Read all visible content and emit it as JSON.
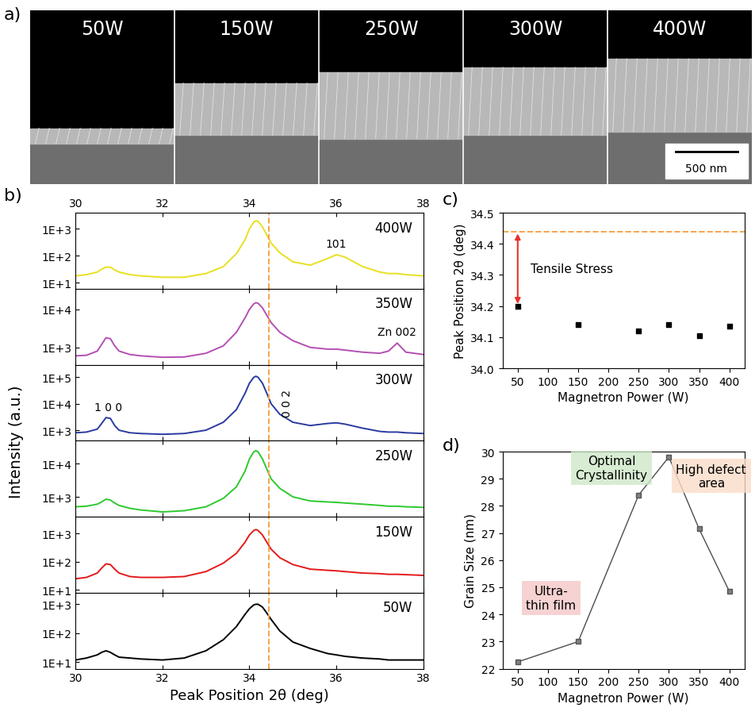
{
  "chart_data": [
    {
      "type": "image",
      "panel_label": "a)",
      "labels": [
        "50W",
        "150W",
        "250W",
        "300W",
        "400W"
      ],
      "scale_bar": "500 nm"
    },
    {
      "type": "line",
      "panel_label": "b)",
      "log": "y",
      "xlabel": "Peak Position 2θ (deg)",
      "ylabel": "Intensity (a.u.)",
      "xlim": [
        30,
        38
      ],
      "xticks": [
        30,
        32,
        34,
        36,
        38
      ],
      "reference_line": {
        "value": 34.44,
        "color": "#f5a54a",
        "line_style": "dashed"
      },
      "x": [
        30.0,
        30.25,
        30.5,
        30.6,
        30.7,
        30.8,
        30.9,
        31.0,
        31.25,
        31.5,
        32.0,
        32.5,
        33.0,
        33.4,
        33.7,
        33.9,
        34.0,
        34.1,
        34.15,
        34.2,
        34.3,
        34.4,
        34.5,
        34.7,
        35.0,
        35.4,
        35.8,
        36.0,
        36.2,
        36.6,
        37.0,
        37.2,
        37.4,
        37.6,
        38.0
      ],
      "series": [
        {
          "name": "400W",
          "color": "#e8e020",
          "ylim": [
            6,
            4000
          ],
          "yticks": [
            {
              "value": 10,
              "label": "1E+1"
            },
            {
              "value": 100,
              "label": "1E+2"
            },
            {
              "value": 1000,
              "label": "1E+3"
            }
          ],
          "annotations": [
            {
              "text": "101",
              "x": 36.0
            }
          ],
          "values": [
            18,
            20,
            25,
            32,
            38,
            38,
            30,
            25,
            20,
            18,
            16,
            16,
            22,
            40,
            120,
            400,
            1000,
            1800,
            2000,
            1900,
            1200,
            600,
            300,
            130,
            60,
            45,
            80,
            110,
            90,
            40,
            25,
            22,
            22,
            20,
            18
          ]
        },
        {
          "name": "350W",
          "color": "#b34fb3",
          "ylim": [
            350,
            35000
          ],
          "yticks": [
            {
              "value": 1000,
              "label": "1E+3"
            },
            {
              "value": 10000,
              "label": "1E+4"
            }
          ],
          "annotations": [
            {
              "text": "Zn 002",
              "x": 37.4
            }
          ],
          "values": [
            600,
            620,
            800,
            1200,
            1800,
            1700,
            1100,
            800,
            650,
            600,
            550,
            560,
            700,
            1100,
            2500,
            6000,
            10000,
            14000,
            15000,
            14500,
            11000,
            7000,
            4500,
            2500,
            1500,
            1000,
            900,
            900,
            850,
            750,
            700,
            800,
            1300,
            750,
            650
          ]
        },
        {
          "name": "300W",
          "color": "#2b3aa0",
          "ylim": [
            400,
            300000
          ],
          "yticks": [
            {
              "value": 1000,
              "label": "1E+3"
            },
            {
              "value": 10000,
              "label": "1E+4"
            },
            {
              "value": 100000,
              "label": "1E+5"
            }
          ],
          "annotations": [
            {
              "text": "1 0 0",
              "x": 30.75
            },
            {
              "text": "0 0 2",
              "x": 34.15
            }
          ],
          "values": [
            800,
            850,
            1100,
            1800,
            3000,
            2800,
            1500,
            1000,
            800,
            750,
            700,
            750,
            1000,
            2000,
            6000,
            25000,
            60000,
            100000,
            110000,
            100000,
            60000,
            25000,
            10000,
            4000,
            2000,
            1500,
            1800,
            1900,
            1700,
            1200,
            900,
            850,
            850,
            800,
            750
          ]
        },
        {
          "name": "250W",
          "color": "#2ec92e",
          "ylim": [
            250,
            50000
          ],
          "yticks": [
            {
              "value": 1000,
              "label": "1E+3"
            },
            {
              "value": 10000,
              "label": "1E+4"
            }
          ],
          "values": [
            500,
            520,
            600,
            700,
            850,
            800,
            650,
            550,
            450,
            400,
            350,
            380,
            500,
            900,
            2000,
            6000,
            14000,
            23000,
            25000,
            23000,
            14000,
            7000,
            3500,
            1800,
            1000,
            750,
            700,
            680,
            650,
            600,
            550,
            520,
            520,
            500,
            480
          ]
        },
        {
          "name": "150W",
          "color": "#e31a1c",
          "ylim": [
            8,
            4000
          ],
          "yticks": [
            {
              "value": 10,
              "label": "1E+1"
            },
            {
              "value": 100,
              "label": "1E+2"
            },
            {
              "value": 1000,
              "label": "1E+3"
            }
          ],
          "values": [
            25,
            28,
            40,
            60,
            85,
            80,
            55,
            40,
            30,
            28,
            28,
            30,
            45,
            90,
            200,
            500,
            900,
            1300,
            1400,
            1300,
            900,
            500,
            280,
            140,
            80,
            55,
            50,
            48,
            45,
            40,
            38,
            36,
            36,
            35,
            33
          ]
        },
        {
          "name": "50W",
          "color": "#000000",
          "ylim": [
            6,
            2500
          ],
          "yticks": [
            {
              "value": 10,
              "label": "1E+1"
            },
            {
              "value": 100,
              "label": "1E+2"
            },
            {
              "value": 1000,
              "label": "1E+3"
            }
          ],
          "values": [
            12,
            14,
            18,
            22,
            25,
            22,
            18,
            15,
            14,
            13,
            12,
            14,
            25,
            60,
            170,
            450,
            700,
            950,
            1000,
            1000,
            800,
            500,
            300,
            120,
            50,
            30,
            20,
            18,
            16,
            14,
            13,
            12,
            12,
            12,
            12
          ]
        }
      ]
    },
    {
      "type": "scatter",
      "panel_label": "c)",
      "xlabel": "Magnetron Power (W)",
      "ylabel": "Peak Position 2θ (deg)",
      "x": [
        50,
        150,
        250,
        300,
        350,
        400
      ],
      "values": [
        34.2,
        34.14,
        34.12,
        34.14,
        34.105,
        34.135
      ],
      "color": "#000000",
      "marker": "square",
      "xlim": [
        25,
        425
      ],
      "xticks": [
        50,
        100,
        150,
        200,
        250,
        300,
        350,
        400
      ],
      "ylim": [
        34.0,
        34.5
      ],
      "yticks": [
        34.0,
        34.1,
        34.2,
        34.3,
        34.4,
        34.5
      ],
      "reference_line": {
        "value": 34.44,
        "color": "#f5a54a",
        "line_style": "dashed"
      },
      "annotations": [
        {
          "text": "Tensile Stress",
          "x": 50,
          "color": "#e8322a"
        }
      ]
    },
    {
      "type": "line",
      "panel_label": "d)",
      "xlabel": "Magnetron Power (W)",
      "ylabel": "Grain Size (nm)",
      "x": [
        50,
        150,
        250,
        300,
        350,
        400
      ],
      "values": [
        22.25,
        23.0,
        28.4,
        29.8,
        27.15,
        24.85
      ],
      "color": "#4d4d4d",
      "marker": "square",
      "line_style": "solid",
      "xlim": [
        25,
        425
      ],
      "xticks": [
        50,
        100,
        150,
        200,
        250,
        300,
        350,
        400
      ],
      "ylim": [
        22,
        30
      ],
      "yticks": [
        22,
        23,
        24,
        25,
        26,
        27,
        28,
        29,
        30
      ],
      "annotations": [
        {
          "text": "Ultra-\nthin film",
          "x": 105,
          "y": 24.6,
          "color": "#f4c7c7"
        },
        {
          "text": "Optimal\nCrystallinity",
          "x": 205,
          "y": 29.4,
          "color": "#cfe8c8"
        },
        {
          "text": "High defect\narea",
          "x": 370,
          "y": 29.1,
          "color": "#fbdcc8"
        }
      ]
    }
  ]
}
